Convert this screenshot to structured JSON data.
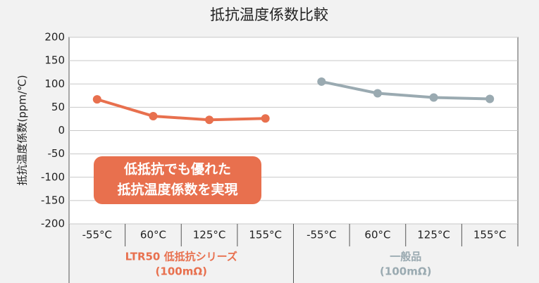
{
  "chart_data": {
    "type": "line",
    "title": "抵抗温度係数比較",
    "ylabel": "抵抗温度係数(ppm/℃)",
    "categories": [
      "-55°C",
      "60°C",
      "125°C",
      "155°C",
      "-55°C",
      "60°C",
      "125°C",
      "155°C"
    ],
    "series": [
      {
        "name": "LTR50 低抵抗シリーズ",
        "sub": "(100mΩ)",
        "color": "#e8704e",
        "values": [
          67,
          31,
          23,
          26,
          null,
          null,
          null,
          null
        ]
      },
      {
        "name": "一般品",
        "sub": "(100mΩ)",
        "color": "#9aaab1",
        "values": [
          null,
          null,
          null,
          null,
          105,
          80,
          71,
          68
        ]
      }
    ],
    "annotation": [
      "低抵抗でも優れた",
      "抵抗温度係数を実現"
    ],
    "ylim": [
      -200,
      200
    ],
    "yticks": [
      -200,
      -150,
      -100,
      -50,
      0,
      50,
      100,
      150,
      200
    ],
    "grid": true
  }
}
